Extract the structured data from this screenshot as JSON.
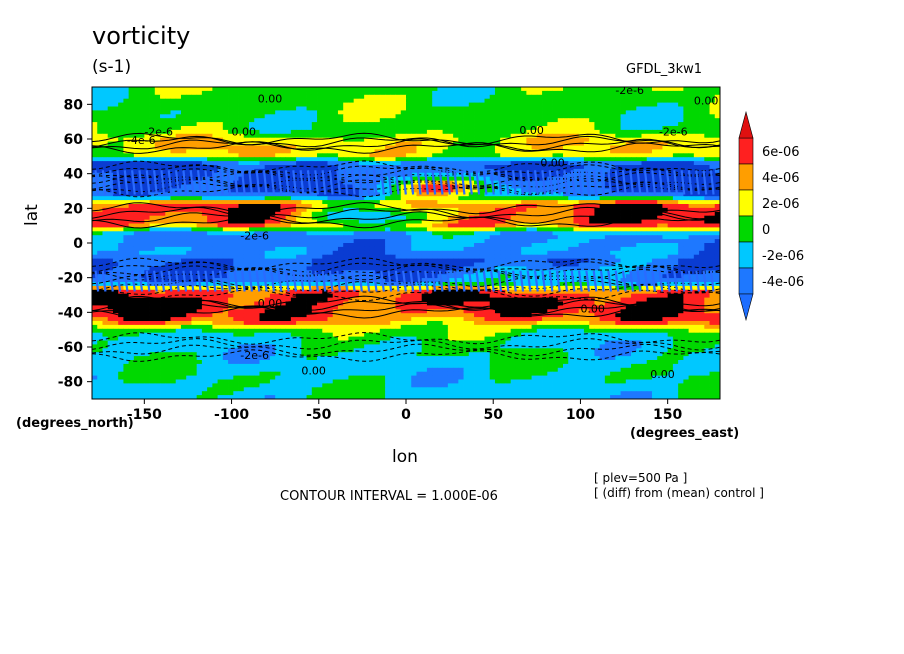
{
  "title": "vorticity",
  "units": "(s-1)",
  "model": "GFDL_3kw1",
  "ylabel": "lat",
  "ylabel_unit": "(degrees_north)",
  "xlabel": "lon",
  "xlabel_unit": "(degrees_east)",
  "contour_interval": "CONTOUR INTERVAL = 1.000E-06",
  "notes": [
    "[ plev=500 Pa ]",
    "[ (diff) from (mean) control ]"
  ],
  "chart_data": {
    "type": "heatmap",
    "xlim": [
      -180,
      180
    ],
    "ylim": [
      -90,
      90
    ],
    "x_ticks": [
      -150,
      -100,
      -50,
      0,
      50,
      100,
      150
    ],
    "y_ticks": [
      80,
      60,
      40,
      20,
      0,
      -20,
      -40,
      -60,
      -80
    ],
    "colorbar": {
      "levels": [
        "6e-06",
        "4e-06",
        "2e-06",
        "0",
        "-2e-06",
        "-4e-06"
      ],
      "colors": [
        "#ff2020",
        "#ff9e00",
        "#ffff00",
        "#00d800",
        "#00c8ff",
        "#1e78ff"
      ]
    },
    "contour_labels": [
      "0.00",
      "0.00",
      "-2e-6",
      "-4e-6",
      "0.00",
      "-2e-6",
      "0.00",
      "-2e-6",
      "0.00",
      "-2e-6",
      "0.00",
      "0.00",
      "-2e-6",
      "0.00",
      "0.00"
    ],
    "bands": [
      {
        "lat": [
          62,
          90
        ],
        "value": 5e-07
      },
      {
        "lat": [
          48,
          62
        ],
        "value": 3e-06
      },
      {
        "lat": [
          25,
          48
        ],
        "value": -5e-06
      },
      {
        "lat": [
          8,
          25
        ],
        "value": 6e-06
      },
      {
        "lat": [
          -8,
          8
        ],
        "value": -3e-06
      },
      {
        "lat": [
          -25,
          -8
        ],
        "value": -5e-06
      },
      {
        "lat": [
          -48,
          -25
        ],
        "value": 6e-06
      },
      {
        "lat": [
          -90,
          -48
        ],
        "value": -1e-06
      }
    ],
    "blobs": [
      {
        "lon": 20,
        "lat": 31,
        "value": 7e-06
      },
      {
        "lon": 150,
        "lat": 14,
        "value": 7e-06
      },
      {
        "lon": -120,
        "lat": -33,
        "value": 7e-06
      },
      {
        "lon": 80,
        "lat": -20,
        "value": 3e-06
      },
      {
        "lon": 25,
        "lat": -50,
        "value": 3e-06
      },
      {
        "lon": -20,
        "lat": 15,
        "value": -5e-06
      }
    ]
  }
}
